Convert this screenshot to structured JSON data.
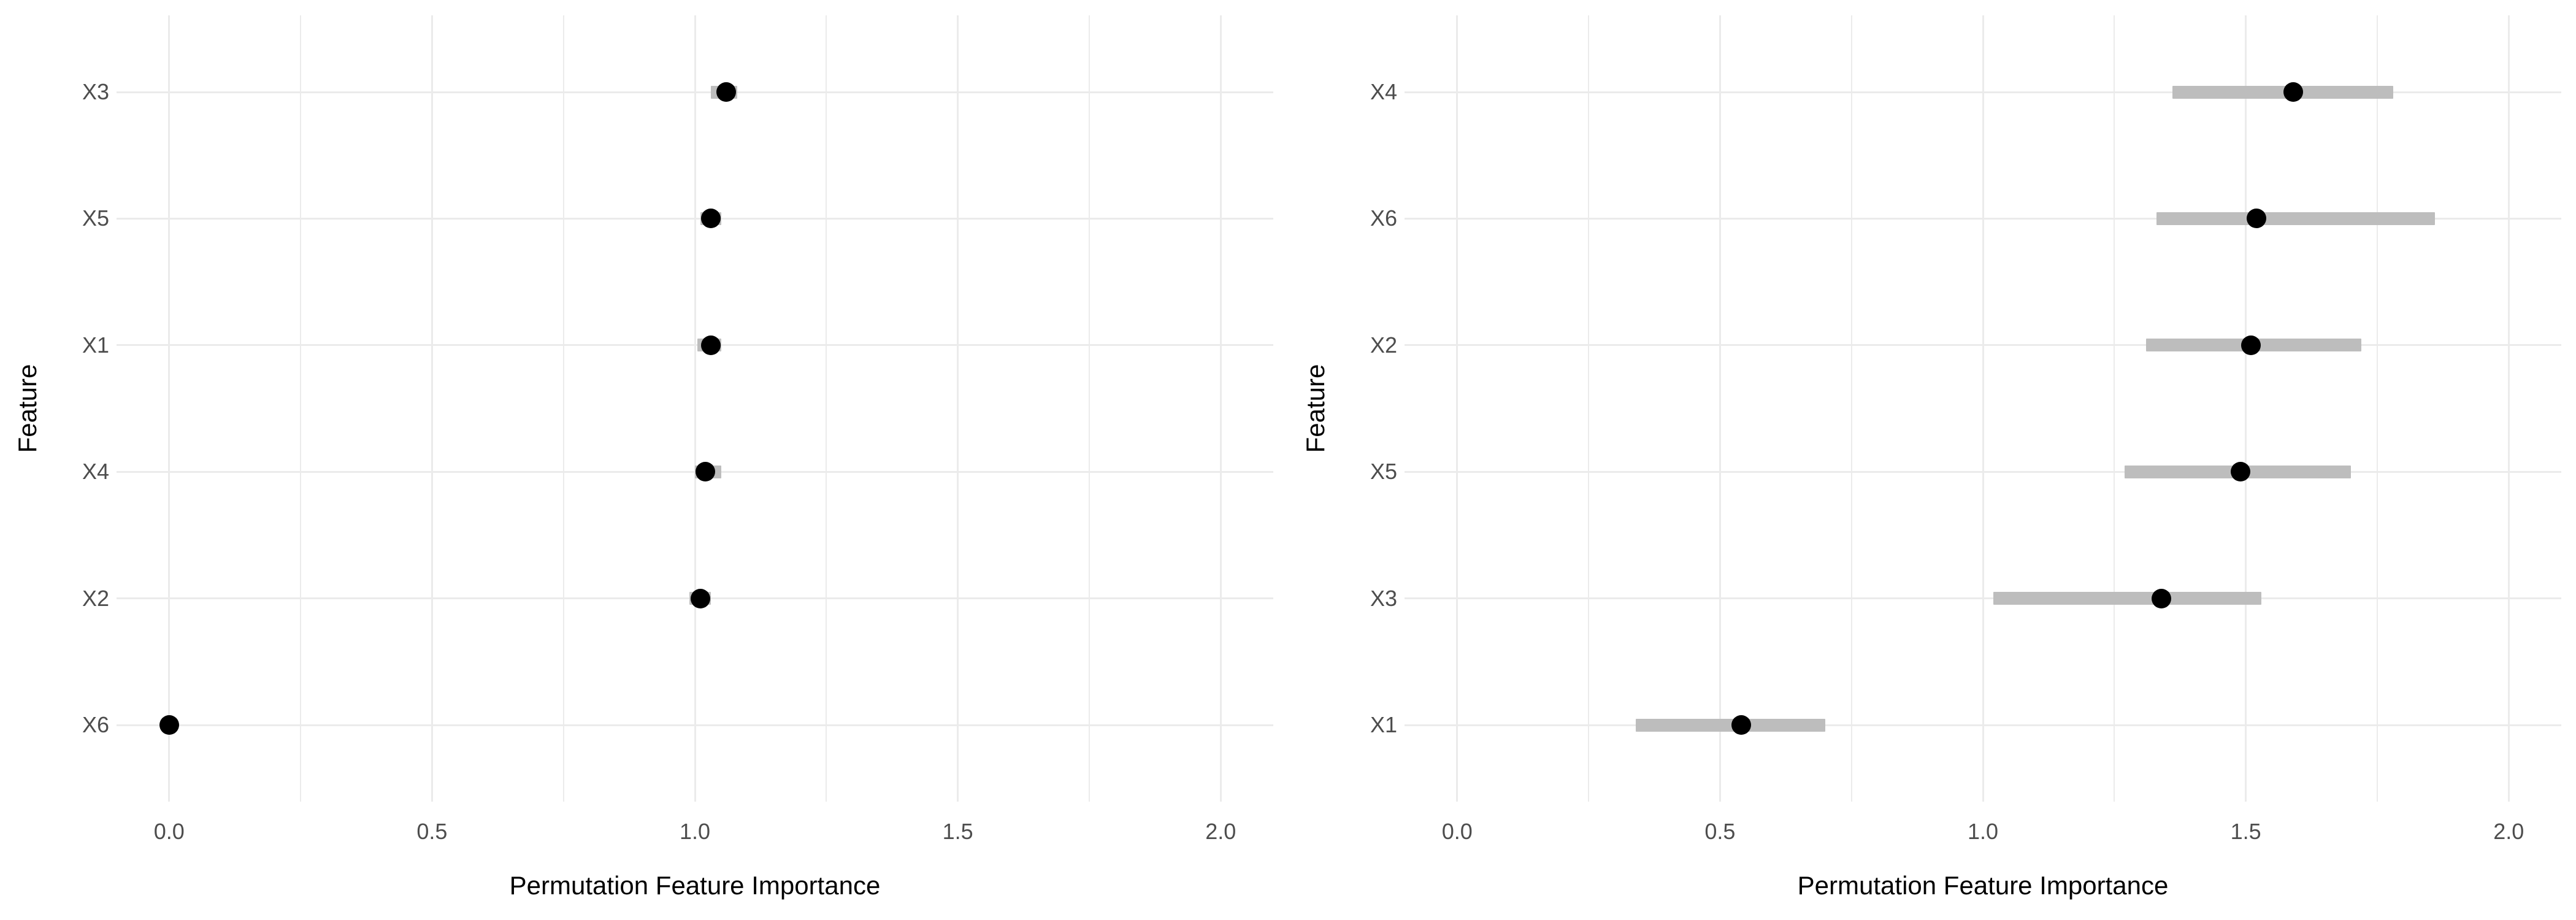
{
  "figure": {
    "background": "#FFFFFF",
    "grid_color": "#EBEBEB",
    "interval_color": "#BDBDBD",
    "point_color": "#000000",
    "tick_text_color": "#4D4D4D",
    "title_text_color": "#000000"
  },
  "chart_data": [
    {
      "type": "scatter",
      "subtype": "dot-plot-with-intervals",
      "panel": "left",
      "title": "",
      "xlabel": "Permutation Feature Importance",
      "ylabel": "Feature",
      "grid": true,
      "legend": false,
      "xlim": [
        -0.1,
        2.1
      ],
      "x_ticks": [
        0.0,
        0.5,
        1.0,
        1.5,
        2.0
      ],
      "x_tick_labels": [
        "0.0",
        "0.5",
        "1.0",
        "1.5",
        "2.0"
      ],
      "x_minor_ticks": [
        0.25,
        0.75,
        1.25,
        1.75
      ],
      "categories": [
        "X3",
        "X5",
        "X1",
        "X4",
        "X2",
        "X6"
      ],
      "rows": [
        {
          "feature": "X3",
          "value": 1.06,
          "low": 1.03,
          "high": 1.08
        },
        {
          "feature": "X5",
          "value": 1.03,
          "low": 1.01,
          "high": 1.05
        },
        {
          "feature": "X1",
          "value": 1.03,
          "low": 1.005,
          "high": 1.05
        },
        {
          "feature": "X4",
          "value": 1.02,
          "low": 1.0,
          "high": 1.05
        },
        {
          "feature": "X2",
          "value": 1.01,
          "low": 0.99,
          "high": 1.03
        },
        {
          "feature": "X6",
          "value": 0.0,
          "low": -0.01,
          "high": 0.01
        }
      ]
    },
    {
      "type": "scatter",
      "subtype": "dot-plot-with-intervals",
      "panel": "right",
      "title": "",
      "xlabel": "Permutation Feature Importance",
      "ylabel": "Feature",
      "grid": true,
      "legend": false,
      "xlim": [
        -0.1,
        2.1
      ],
      "x_ticks": [
        0.0,
        0.5,
        1.0,
        1.5,
        2.0
      ],
      "x_tick_labels": [
        "0.0",
        "0.5",
        "1.0",
        "1.5",
        "2.0"
      ],
      "x_minor_ticks": [
        0.25,
        0.75,
        1.25,
        1.75
      ],
      "categories": [
        "X4",
        "X6",
        "X2",
        "X5",
        "X3",
        "X1"
      ],
      "rows": [
        {
          "feature": "X4",
          "value": 1.59,
          "low": 1.36,
          "high": 1.78
        },
        {
          "feature": "X6",
          "value": 1.52,
          "low": 1.33,
          "high": 1.86
        },
        {
          "feature": "X2",
          "value": 1.51,
          "low": 1.31,
          "high": 1.72
        },
        {
          "feature": "X5",
          "value": 1.49,
          "low": 1.27,
          "high": 1.7
        },
        {
          "feature": "X3",
          "value": 1.34,
          "low": 1.02,
          "high": 1.53
        },
        {
          "feature": "X1",
          "value": 0.54,
          "low": 0.34,
          "high": 0.7
        }
      ]
    }
  ]
}
